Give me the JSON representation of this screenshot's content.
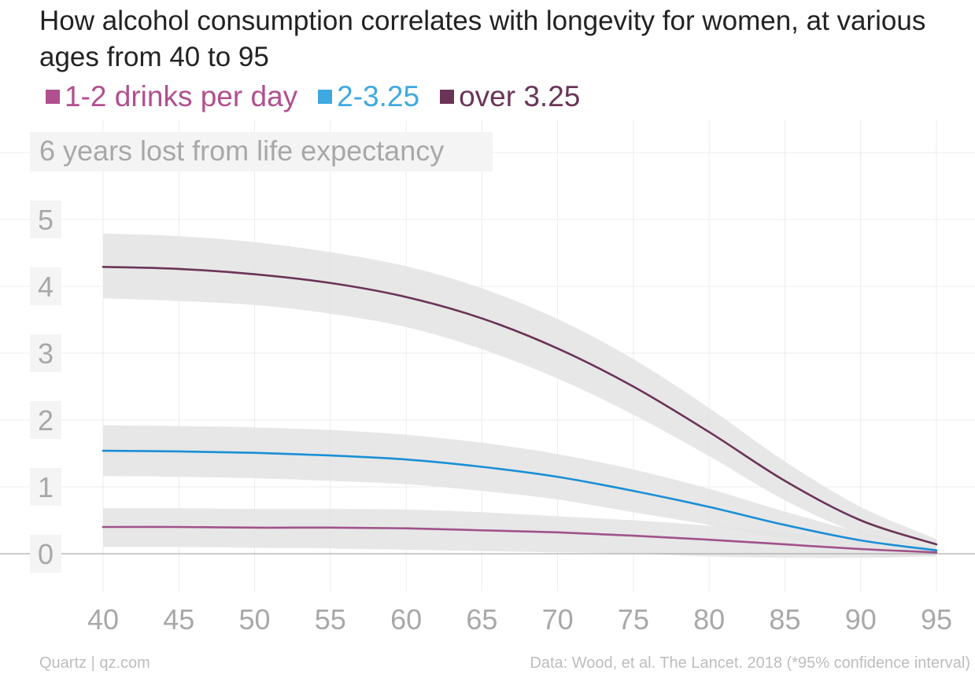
{
  "chart_data": {
    "type": "line",
    "title": "How alcohol consumption correlates with longevity for women, at various ages from 40 to 95",
    "ylabel": "6 years lost from life expectancy",
    "xlabel": "",
    "x": [
      40,
      45,
      50,
      55,
      60,
      65,
      70,
      75,
      80,
      85,
      90,
      95
    ],
    "xlim": [
      40,
      95
    ],
    "ylim": [
      0,
      6
    ],
    "y_ticks": [
      "0",
      "1",
      "2",
      "3",
      "4",
      "5"
    ],
    "x_ticks": [
      "40",
      "45",
      "50",
      "55",
      "60",
      "65",
      "70",
      "75",
      "80",
      "85",
      "90",
      "95"
    ],
    "grid": true,
    "legend_position": "top-left",
    "series": [
      {
        "name": "1-2 drinks per day",
        "color": "#a0528a",
        "legend_color": "#b0508e",
        "values": [
          0.4,
          0.4,
          0.39,
          0.39,
          0.38,
          0.35,
          0.32,
          0.27,
          0.21,
          0.14,
          0.07,
          0.02
        ],
        "ci_low": [
          0.1,
          0.1,
          0.09,
          0.08,
          0.06,
          0.04,
          0.02,
          0.0,
          -0.04,
          -0.06,
          -0.06,
          -0.04
        ],
        "ci_high": [
          0.68,
          0.68,
          0.67,
          0.67,
          0.66,
          0.62,
          0.56,
          0.5,
          0.42,
          0.32,
          0.18,
          0.07
        ]
      },
      {
        "name": "2-3.25",
        "color": "#1a8fd6",
        "legend_color": "#3da9e0",
        "values": [
          1.54,
          1.53,
          1.51,
          1.47,
          1.41,
          1.3,
          1.15,
          0.94,
          0.7,
          0.43,
          0.2,
          0.05
        ],
        "ci_low": [
          1.16,
          1.15,
          1.13,
          1.09,
          1.04,
          0.94,
          0.81,
          0.62,
          0.43,
          0.23,
          0.08,
          0.01
        ],
        "ci_high": [
          1.92,
          1.91,
          1.89,
          1.85,
          1.78,
          1.66,
          1.49,
          1.26,
          0.97,
          0.63,
          0.32,
          0.09
        ]
      },
      {
        "name": "over 3.25",
        "color": "#6b3457",
        "legend_color": "#6b3457",
        "values": [
          4.29,
          4.26,
          4.18,
          4.05,
          3.84,
          3.52,
          3.07,
          2.5,
          1.82,
          1.09,
          0.5,
          0.14
        ],
        "ci_low": [
          3.82,
          3.78,
          3.72,
          3.59,
          3.39,
          3.06,
          2.62,
          2.08,
          1.46,
          0.8,
          0.3,
          0.05
        ],
        "ci_high": [
          4.79,
          4.75,
          4.66,
          4.51,
          4.3,
          3.97,
          3.51,
          2.91,
          2.18,
          1.38,
          0.7,
          0.22
        ]
      }
    ],
    "band_color": "#e3e3e3",
    "grid_color": "#ececec",
    "zero_line_color": "#9a9a9a",
    "tick_bg_color": "#f4f4f4"
  },
  "footer": {
    "source_left": "Quartz | qz.com",
    "source_right": "Data: Wood, et al. The Lancet. 2018 (*95% confidence interval)"
  }
}
